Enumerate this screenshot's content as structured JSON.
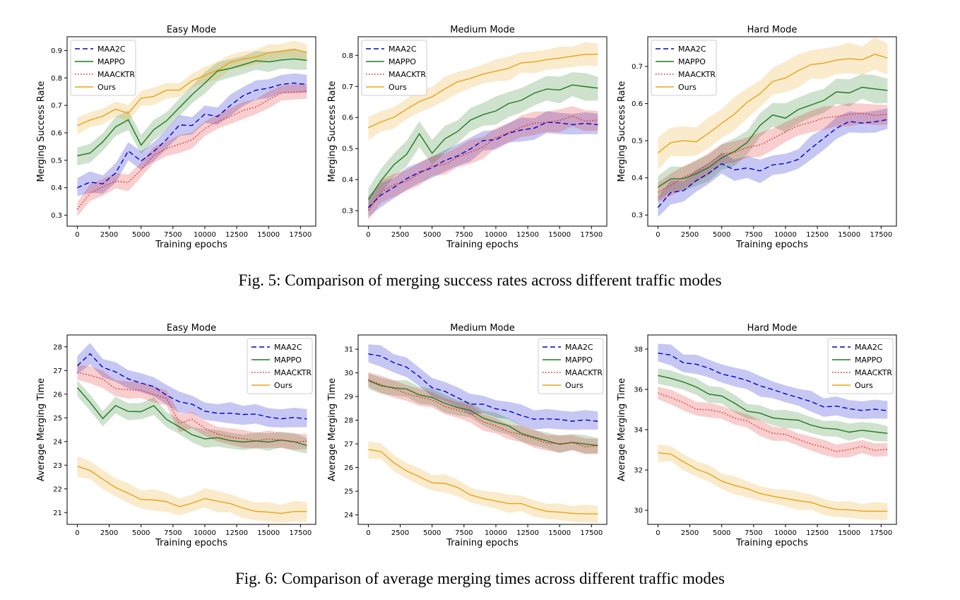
{
  "figures": [
    {
      "caption": "Fig. 5: Comparison of merging success rates across different traffic modes"
    },
    {
      "caption": "Fig. 6: Comparison of average merging times across different traffic modes"
    }
  ],
  "colors": {
    "MAA2C": "#0000cc",
    "MAPPO": "#1f7a1f",
    "MAACKTR": "#dd2222",
    "Ours": "#e8a317"
  },
  "chart_data": [
    {
      "type": "line",
      "title": "Easy Mode",
      "xlabel": "Training epochs",
      "ylabel": "Merging Success Rate",
      "xlim": [
        -800,
        18700
      ],
      "ylim": [
        0.26,
        0.95
      ],
      "xticks": [
        0,
        2500,
        5000,
        7500,
        10000,
        12500,
        15000,
        17500
      ],
      "yticks": [
        0.3,
        0.4,
        0.5,
        0.6,
        0.7,
        0.8,
        0.9
      ],
      "yformat": 1,
      "legend": "upper-left",
      "x": [
        0,
        1000,
        2000,
        3000,
        4000,
        5000,
        6000,
        7000,
        8000,
        9000,
        10000,
        11000,
        12000,
        13000,
        14000,
        15000,
        16000,
        17000,
        18000
      ],
      "series": [
        {
          "name": "MAA2C",
          "band": 0.03,
          "values": [
            0.4,
            0.42,
            0.42,
            0.45,
            0.53,
            0.5,
            0.53,
            0.58,
            0.63,
            0.62,
            0.67,
            0.66,
            0.7,
            0.74,
            0.75,
            0.76,
            0.78,
            0.78,
            0.78
          ]
        },
        {
          "name": "MAPPO",
          "band": 0.03,
          "values": [
            0.51,
            0.53,
            0.57,
            0.62,
            0.65,
            0.55,
            0.61,
            0.65,
            0.69,
            0.74,
            0.78,
            0.82,
            0.84,
            0.85,
            0.86,
            0.86,
            0.86,
            0.87,
            0.87
          ]
        },
        {
          "name": "MAACKTR",
          "band": 0.025,
          "values": [
            0.32,
            0.38,
            0.4,
            0.43,
            0.42,
            0.46,
            0.52,
            0.54,
            0.56,
            0.58,
            0.61,
            0.64,
            0.66,
            0.68,
            0.7,
            0.72,
            0.74,
            0.75,
            0.75
          ]
        },
        {
          "name": "Ours",
          "band": 0.025,
          "values": [
            0.63,
            0.64,
            0.66,
            0.69,
            0.67,
            0.73,
            0.73,
            0.75,
            0.76,
            0.79,
            0.81,
            0.83,
            0.85,
            0.87,
            0.88,
            0.89,
            0.9,
            0.9,
            0.89
          ]
        }
      ]
    },
    {
      "type": "line",
      "title": "Medium Mode",
      "xlabel": "Training epochs",
      "ylabel": "Merging Success Rate",
      "xlim": [
        -800,
        18700
      ],
      "ylim": [
        0.25,
        0.86
      ],
      "xticks": [
        0,
        2500,
        5000,
        7500,
        10000,
        12500,
        15000,
        17500
      ],
      "yticks": [
        0.3,
        0.4,
        0.5,
        0.6,
        0.7,
        0.8
      ],
      "yformat": 1,
      "legend": "upper-left",
      "x": [
        0,
        1000,
        2000,
        3000,
        4000,
        5000,
        6000,
        7000,
        8000,
        9000,
        10000,
        11000,
        12000,
        13000,
        14000,
        15000,
        16000,
        17000,
        18000
      ],
      "series": [
        {
          "name": "MAA2C",
          "band": 0.03,
          "values": [
            0.31,
            0.35,
            0.38,
            0.4,
            0.42,
            0.44,
            0.46,
            0.48,
            0.5,
            0.52,
            0.53,
            0.55,
            0.56,
            0.57,
            0.58,
            0.58,
            0.58,
            0.58,
            0.58
          ]
        },
        {
          "name": "MAPPO",
          "band": 0.035,
          "values": [
            0.33,
            0.4,
            0.45,
            0.48,
            0.55,
            0.48,
            0.53,
            0.56,
            0.59,
            0.61,
            0.62,
            0.64,
            0.66,
            0.68,
            0.69,
            0.69,
            0.7,
            0.7,
            0.7
          ]
        },
        {
          "name": "MAACKTR",
          "band": 0.03,
          "values": [
            0.3,
            0.36,
            0.38,
            0.4,
            0.42,
            0.44,
            0.45,
            0.47,
            0.49,
            0.51,
            0.53,
            0.55,
            0.57,
            0.58,
            0.59,
            0.59,
            0.6,
            0.59,
            0.59
          ]
        },
        {
          "name": "Ours",
          "band": 0.03,
          "values": [
            0.57,
            0.58,
            0.6,
            0.63,
            0.65,
            0.67,
            0.69,
            0.71,
            0.73,
            0.74,
            0.75,
            0.76,
            0.77,
            0.78,
            0.79,
            0.79,
            0.8,
            0.8,
            0.8
          ]
        }
      ]
    },
    {
      "type": "line",
      "title": "Hard Mode",
      "xlabel": "Training epochs",
      "ylabel": "Merging Success Rate",
      "xlim": [
        -800,
        18700
      ],
      "ylim": [
        0.27,
        0.78
      ],
      "xticks": [
        0,
        2500,
        5000,
        7500,
        10000,
        12500,
        15000,
        17500
      ],
      "yticks": [
        0.3,
        0.4,
        0.5,
        0.6,
        0.7
      ],
      "yformat": 1,
      "legend": "upper-left",
      "x": [
        0,
        1000,
        2000,
        3000,
        4000,
        5000,
        6000,
        7000,
        8000,
        9000,
        10000,
        11000,
        12000,
        13000,
        14000,
        15000,
        16000,
        17000,
        18000
      ],
      "series": [
        {
          "name": "MAA2C",
          "band": 0.025,
          "values": [
            0.32,
            0.36,
            0.37,
            0.39,
            0.41,
            0.44,
            0.42,
            0.43,
            0.42,
            0.43,
            0.44,
            0.45,
            0.48,
            0.51,
            0.53,
            0.55,
            0.55,
            0.55,
            0.56
          ]
        },
        {
          "name": "MAPPO",
          "band": 0.03,
          "values": [
            0.37,
            0.4,
            0.4,
            0.41,
            0.43,
            0.45,
            0.47,
            0.5,
            0.54,
            0.57,
            0.56,
            0.58,
            0.6,
            0.61,
            0.63,
            0.63,
            0.64,
            0.64,
            0.64
          ]
        },
        {
          "name": "MAACKTR",
          "band": 0.025,
          "values": [
            0.36,
            0.38,
            0.4,
            0.42,
            0.44,
            0.46,
            0.47,
            0.48,
            0.49,
            0.51,
            0.52,
            0.54,
            0.55,
            0.56,
            0.57,
            0.57,
            0.57,
            0.57,
            0.57
          ]
        },
        {
          "name": "Ours",
          "band": 0.035,
          "values": [
            0.47,
            0.49,
            0.5,
            0.5,
            0.52,
            0.55,
            0.57,
            0.6,
            0.63,
            0.66,
            0.67,
            0.69,
            0.7,
            0.71,
            0.72,
            0.72,
            0.72,
            0.73,
            0.72
          ]
        }
      ]
    },
    {
      "type": "line",
      "title": "Easy Mode",
      "xlabel": "Training epochs",
      "ylabel": "Average Merging Time",
      "xlim": [
        -800,
        18700
      ],
      "ylim": [
        20.5,
        28.5
      ],
      "xticks": [
        0,
        2500,
        5000,
        7500,
        10000,
        12500,
        15000,
        17500
      ],
      "yticks": [
        21,
        22,
        23,
        24,
        25,
        26,
        27,
        28
      ],
      "yformat": 0,
      "legend": "upper-right",
      "x": [
        0,
        1000,
        2000,
        3000,
        4000,
        5000,
        6000,
        7000,
        8000,
        9000,
        10000,
        11000,
        12000,
        13000,
        14000,
        15000,
        16000,
        17000,
        18000
      ],
      "series": [
        {
          "name": "MAA2C",
          "band": 0.35,
          "values": [
            27.2,
            27.7,
            27.2,
            26.9,
            26.6,
            26.5,
            26.3,
            26.0,
            25.7,
            25.5,
            25.3,
            25.2,
            25.2,
            25.2,
            25.1,
            25.0,
            25.0,
            25.0,
            25.0
          ]
        },
        {
          "name": "MAPPO",
          "band": 0.3,
          "values": [
            26.2,
            25.7,
            25.0,
            25.5,
            25.3,
            25.2,
            25.5,
            25.0,
            24.6,
            24.3,
            24.1,
            24.1,
            24.1,
            24.0,
            24.0,
            24.0,
            24.0,
            24.0,
            23.9
          ]
        },
        {
          "name": "MAACKTR",
          "band": 0.3,
          "values": [
            26.9,
            26.8,
            26.6,
            26.3,
            26.2,
            26.1,
            26.0,
            25.8,
            24.8,
            25.0,
            24.5,
            24.3,
            24.2,
            24.1,
            24.1,
            24.1,
            24.0,
            24.0,
            24.0
          ]
        },
        {
          "name": "Ours",
          "band": 0.35,
          "values": [
            23.0,
            22.7,
            22.4,
            22.1,
            21.8,
            21.6,
            21.5,
            21.4,
            21.3,
            21.4,
            21.6,
            21.5,
            21.3,
            21.2,
            21.1,
            21.0,
            21.0,
            21.0,
            21.0
          ]
        }
      ]
    },
    {
      "type": "line",
      "title": "Medium Mode",
      "xlabel": "Training epochs",
      "ylabel": "Average Merging Time",
      "xlim": [
        -800,
        18700
      ],
      "ylim": [
        23.6,
        31.6
      ],
      "xticks": [
        0,
        2500,
        5000,
        7500,
        10000,
        12500,
        15000,
        17500
      ],
      "yticks": [
        24,
        25,
        26,
        27,
        28,
        29,
        30,
        31
      ],
      "yformat": 0,
      "legend": "upper-right",
      "x": [
        0,
        1000,
        2000,
        3000,
        4000,
        5000,
        6000,
        7000,
        8000,
        9000,
        10000,
        11000,
        12000,
        13000,
        14000,
        15000,
        16000,
        17000,
        18000
      ],
      "series": [
        {
          "name": "MAA2C",
          "band": 0.35,
          "values": [
            30.8,
            30.7,
            30.5,
            30.2,
            29.8,
            29.4,
            29.2,
            29.0,
            28.7,
            28.6,
            28.5,
            28.4,
            28.2,
            28.1,
            28.0,
            28.0,
            28.0,
            28.0,
            28.0
          ]
        },
        {
          "name": "MAPPO",
          "band": 0.3,
          "values": [
            29.6,
            29.5,
            29.4,
            29.3,
            29.1,
            28.9,
            28.7,
            28.6,
            28.4,
            28.1,
            27.9,
            27.7,
            27.5,
            27.3,
            27.1,
            27.0,
            27.0,
            27.0,
            27.0
          ]
        },
        {
          "name": "MAACKTR",
          "band": 0.3,
          "values": [
            29.7,
            29.5,
            29.3,
            29.2,
            29.0,
            28.8,
            28.6,
            28.4,
            28.3,
            28.0,
            27.7,
            27.5,
            27.4,
            27.2,
            27.1,
            27.0,
            27.0,
            26.9,
            26.9
          ]
        },
        {
          "name": "Ours",
          "band": 0.3,
          "values": [
            26.8,
            26.6,
            26.2,
            25.9,
            25.6,
            25.4,
            25.3,
            25.1,
            24.9,
            24.7,
            24.6,
            24.5,
            24.4,
            24.3,
            24.2,
            24.1,
            24.1,
            24.0,
            24.0
          ]
        }
      ]
    },
    {
      "type": "line",
      "title": "Hard Mode",
      "xlabel": "Training epochs",
      "ylabel": "Average Merging Time",
      "xlim": [
        -800,
        18700
      ],
      "ylim": [
        29.3,
        38.7
      ],
      "xticks": [
        0,
        2500,
        5000,
        7500,
        10000,
        12500,
        15000,
        17500
      ],
      "yticks": [
        30,
        32,
        34,
        36,
        38
      ],
      "yformat": 0,
      "legend": "upper-right",
      "x": [
        0,
        1000,
        2000,
        3000,
        4000,
        5000,
        6000,
        7000,
        8000,
        9000,
        10000,
        11000,
        12000,
        13000,
        14000,
        15000,
        16000,
        17000,
        18000
      ],
      "series": [
        {
          "name": "MAA2C",
          "band": 0.4,
          "values": [
            37.8,
            37.7,
            37.4,
            37.2,
            37.0,
            36.8,
            36.6,
            36.5,
            36.2,
            35.9,
            35.8,
            35.6,
            35.4,
            35.2,
            35.1,
            35.0,
            35.0,
            35.0,
            35.0
          ]
        },
        {
          "name": "MAPPO",
          "band": 0.35,
          "values": [
            36.6,
            36.6,
            36.4,
            36.1,
            35.8,
            35.6,
            35.3,
            35.0,
            34.8,
            34.6,
            34.5,
            34.4,
            34.3,
            34.1,
            34.0,
            33.9,
            33.9,
            33.9,
            33.9
          ]
        },
        {
          "name": "MAACKTR",
          "band": 0.3,
          "values": [
            35.8,
            35.6,
            35.3,
            35.1,
            35.0,
            34.8,
            34.6,
            34.4,
            34.1,
            33.9,
            33.7,
            33.5,
            33.3,
            33.1,
            33.0,
            33.0,
            33.1,
            33.0,
            33.0
          ]
        },
        {
          "name": "Ours",
          "band": 0.35,
          "values": [
            32.9,
            32.7,
            32.4,
            32.1,
            31.8,
            31.5,
            31.2,
            31.0,
            30.9,
            30.7,
            30.6,
            30.5,
            30.3,
            30.2,
            30.1,
            30.0,
            30.0,
            29.9,
            29.9
          ]
        }
      ]
    }
  ]
}
